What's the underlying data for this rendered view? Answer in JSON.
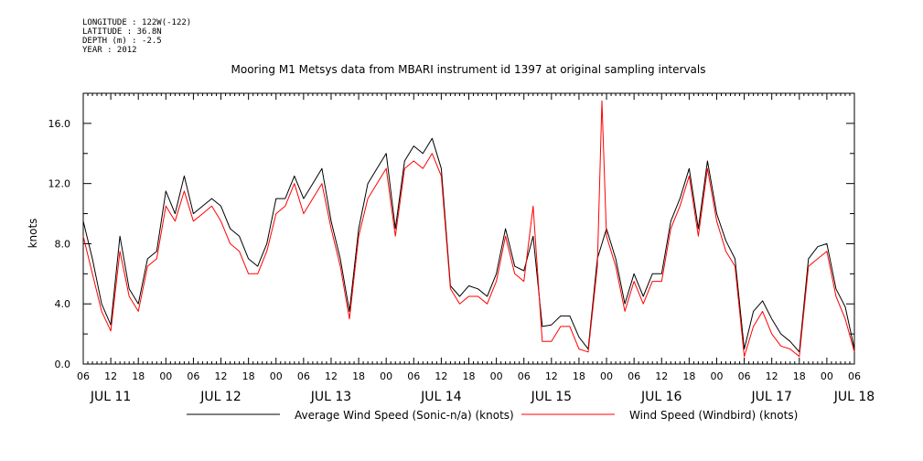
{
  "header": {
    "longitude": "LONGITUDE : 122W(-122)",
    "latitude": "LATITUDE : 36.8N",
    "depth": "DEPTH (m) : -2.5",
    "year": "YEAR : 2012"
  },
  "chart_data": {
    "type": "line",
    "title": "Mooring M1 Metsys data from MBARI instrument id 1397 at original sampling intervals",
    "ylabel": "knots",
    "xlabel": "",
    "ylim": [
      0,
      18
    ],
    "yticks": [
      "0.0",
      "4.0",
      "8.0",
      "12.0",
      "16.0"
    ],
    "ytick_values": [
      0,
      4,
      8,
      12,
      16
    ],
    "xlim_hours": [
      0,
      168
    ],
    "xtick_labels": [
      "06",
      "12",
      "18",
      "00",
      "06",
      "12",
      "18",
      "00",
      "06",
      "12",
      "18",
      "00",
      "06",
      "12",
      "18",
      "00",
      "06",
      "12",
      "18",
      "00",
      "06",
      "12",
      "18",
      "00",
      "06",
      "12",
      "18",
      "00",
      "06"
    ],
    "day_labels": [
      "JUL 11",
      "JUL 12",
      "JUL 13",
      "JUL 14",
      "JUL 15",
      "JUL 16",
      "JUL 17",
      "JUL 18"
    ],
    "day_label_hours": [
      6,
      30,
      54,
      78,
      102,
      126,
      150,
      168
    ],
    "series": [
      {
        "name": "Average Wind Speed (Sonic-n/a) (knots)",
        "color": "#000000",
        "x_hours": [
          0,
          2,
          4,
          6,
          8,
          10,
          12,
          14,
          16,
          18,
          20,
          22,
          24,
          26,
          28,
          30,
          32,
          34,
          36,
          38,
          40,
          42,
          44,
          46,
          48,
          50,
          52,
          54,
          56,
          58,
          60,
          62,
          64,
          66,
          68,
          70,
          72,
          74,
          76,
          78,
          80,
          82,
          84,
          86,
          88,
          90,
          92,
          94,
          96,
          98,
          100,
          102,
          104,
          106,
          108,
          110,
          112,
          114,
          116,
          118,
          120,
          122,
          124,
          126,
          128,
          130,
          132,
          134,
          136,
          138,
          140,
          142,
          144,
          146,
          148,
          150,
          152,
          154,
          156,
          158,
          160,
          162,
          164,
          166,
          168
        ],
        "values": [
          9.5,
          7,
          4,
          2.6,
          8.5,
          5,
          4,
          7,
          7.5,
          11.5,
          10,
          12.5,
          10,
          10.5,
          11,
          10.5,
          9,
          8.5,
          7,
          6.5,
          8,
          11,
          11,
          12.5,
          11,
          12,
          13,
          9.5,
          7,
          3.5,
          9,
          12,
          13,
          14,
          9,
          13.5,
          14.5,
          14,
          15,
          13,
          5.2,
          4.5,
          5.2,
          5,
          4.5,
          6,
          9,
          6.5,
          6.2,
          8.5,
          2.5,
          2.6,
          3.2,
          3.2,
          1.8,
          1,
          7,
          9,
          7,
          4,
          6,
          4.5,
          6,
          6,
          9.5,
          11,
          13,
          9,
          13.5,
          10,
          8.2,
          7,
          1,
          3.5,
          4.2,
          3,
          2,
          1.5,
          0.8,
          7,
          7.8,
          8,
          5,
          3.8,
          1
        ]
      },
      {
        "name": "Wind Speed (Windbird) (knots)",
        "color": "#ff0000",
        "x_hours": [
          0,
          2,
          4,
          6,
          8,
          10,
          12,
          14,
          16,
          18,
          20,
          22,
          24,
          26,
          28,
          30,
          32,
          34,
          36,
          38,
          40,
          42,
          44,
          46,
          48,
          50,
          52,
          54,
          56,
          58,
          60,
          62,
          64,
          66,
          68,
          70,
          72,
          74,
          76,
          78,
          80,
          82,
          84,
          86,
          88,
          90,
          92,
          94,
          96,
          98,
          100,
          102,
          104,
          106,
          108,
          110,
          112,
          113,
          114,
          116,
          118,
          120,
          122,
          124,
          126,
          128,
          130,
          132,
          134,
          136,
          138,
          140,
          142,
          144,
          146,
          148,
          150,
          152,
          154,
          156,
          158,
          160,
          162,
          164,
          166,
          168
        ],
        "values": [
          8.5,
          6,
          3.5,
          2.2,
          7.5,
          4.5,
          3.5,
          6.5,
          7,
          10.5,
          9.5,
          11.5,
          9.5,
          10,
          10.5,
          9.5,
          8,
          7.5,
          6,
          6,
          7.5,
          10,
          10.5,
          12,
          10,
          11,
          12,
          9,
          6.5,
          3,
          8.5,
          11,
          12,
          13,
          8.5,
          13,
          13.5,
          13,
          14,
          12.5,
          5,
          4,
          4.5,
          4.5,
          4,
          5.5,
          8.5,
          6,
          5.5,
          10.5,
          1.5,
          1.5,
          2.5,
          2.5,
          1,
          0.8,
          6.5,
          17.5,
          8.5,
          6.5,
          3.5,
          5.5,
          4,
          5.5,
          5.5,
          9,
          10.5,
          12.5,
          8.5,
          13,
          9.5,
          7.5,
          6.5,
          0.5,
          2.5,
          3.5,
          2,
          1.2,
          1,
          0.5,
          6.5,
          7,
          7.5,
          4.5,
          3,
          0.8
        ]
      }
    ],
    "legend_placement": "bottom"
  }
}
